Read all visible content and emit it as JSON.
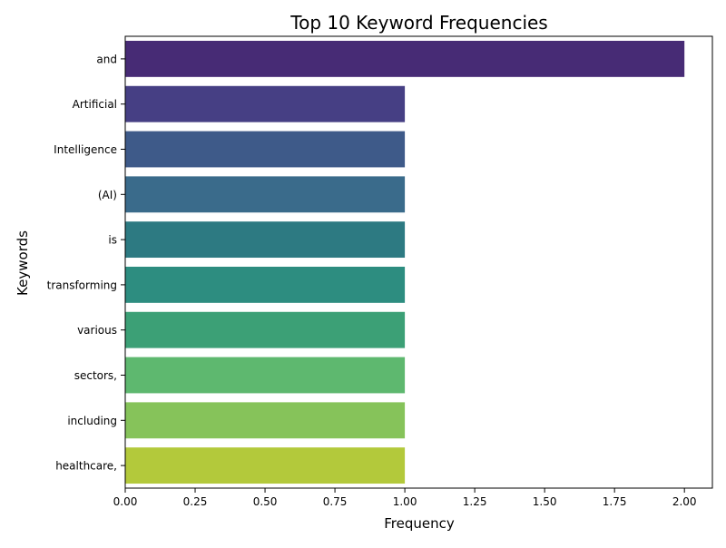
{
  "chart_data": {
    "type": "bar",
    "orientation": "horizontal",
    "title": "Top 10 Keyword Frequencies",
    "xlabel": "Frequency",
    "ylabel": "Keywords",
    "xlim": [
      0,
      2.1
    ],
    "xticks": [
      "0.00",
      "0.25",
      "0.50",
      "0.75",
      "1.00",
      "1.25",
      "1.50",
      "1.75",
      "2.00"
    ],
    "grid": false,
    "legend": "none",
    "categories": [
      "and",
      "Artificial",
      "Intelligence",
      "(AI)",
      "is",
      "transforming",
      "various",
      "sectors,",
      "including",
      "healthcare,"
    ],
    "values": [
      2,
      1,
      1,
      1,
      1,
      1,
      1,
      1,
      1,
      1
    ],
    "colors": [
      "#472b75",
      "#463f84",
      "#3e5a89",
      "#3a6b8b",
      "#2d7a82",
      "#2d8d80",
      "#3ca076",
      "#5eb86f",
      "#86c35a",
      "#b3c93b"
    ]
  }
}
